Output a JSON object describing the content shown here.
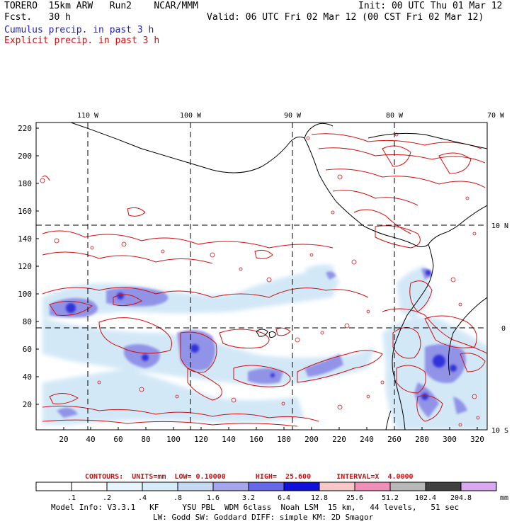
{
  "header": {
    "model": "TORERO  15km ARW   Run2    NCAR/MMM",
    "fcst": "Fcst.   30 h",
    "init": "Init: 00 UTC Thu 01 Mar 12",
    "valid": "Valid: 06 UTC Fri 02 Mar 12 (00 CST Fri 02 Mar 12)",
    "legend_cumulus": "Cumulus precip. in past 3 h",
    "legend_explicit": "Explicit precip. in past 3 h"
  },
  "colors": {
    "cumulus": "#1c1cc8",
    "explicit": "#d01010",
    "coast": "#000000"
  },
  "map": {
    "lon_labels": [
      "110 W",
      "100 W",
      "90 W",
      "80 W",
      "70 W"
    ],
    "lat_labels": [
      "10 N",
      "0",
      "10 S"
    ],
    "y_ticks": [
      "220",
      "200",
      "180",
      "160",
      "140",
      "120",
      "100",
      "80",
      "60",
      "40",
      "20"
    ],
    "x_ticks": [
      "20",
      "40",
      "60",
      "80",
      "100",
      "120",
      "140",
      "160",
      "180",
      "200",
      "220",
      "240",
      "260",
      "280",
      "300",
      "320"
    ]
  },
  "contours_line": "CONTOURS:  UNITS=mm  LOW= 0.10000       HIGH=  25.600      INTERVAL=X  4.0000",
  "colorbar": {
    "labels": [
      ".1",
      ".2",
      ".4",
      ".8",
      "1.6",
      "3.2",
      "6.4",
      "12.8",
      "25.6",
      "51.2",
      "102.4",
      "204.8"
    ],
    "unit": "mm",
    "colors": [
      "#ffffff",
      "#ffffff",
      "#e8f4fb",
      "#d6ecf8",
      "#c6d8f2",
      "#a6a6ee",
      "#6868ea",
      "#1010d8",
      "#f8c8c8",
      "#f090b8",
      "#b8b8b8",
      "#404040",
      "#d8a8f0"
    ]
  },
  "model_info": {
    "line1": "Model Info: V3.3.1   KF     YSU PBL  WDM 6class  Noah LSM  15 km,   44 levels,   51 sec",
    "line2": "LW: Godd SW: Goddard DIFF: simple KM: 2D Smagor"
  }
}
